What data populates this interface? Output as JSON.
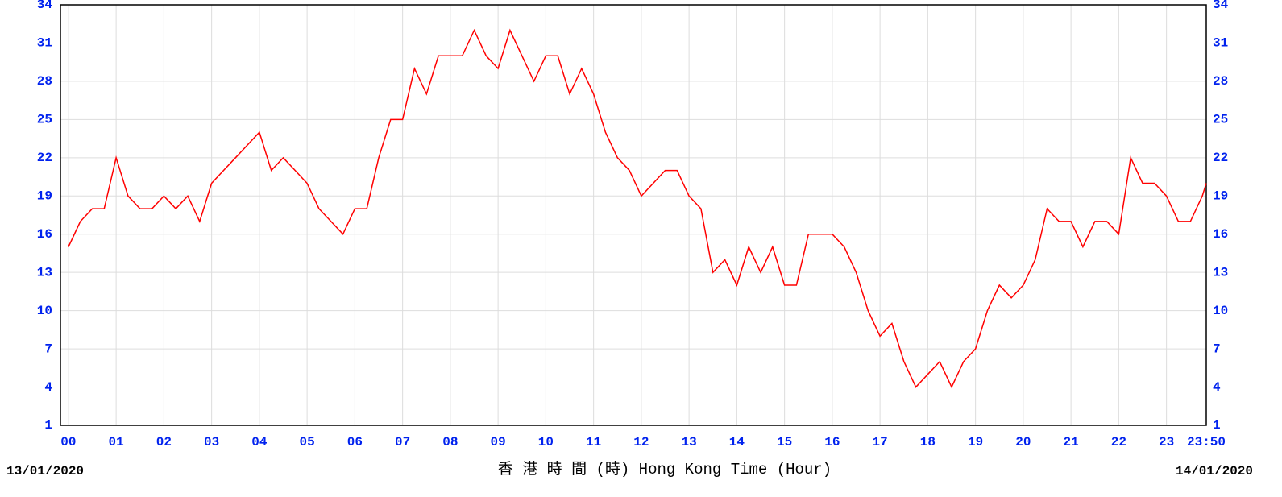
{
  "chart_data": {
    "type": "line",
    "x": [
      0,
      0.25,
      0.5,
      0.75,
      1,
      1.25,
      1.5,
      1.75,
      2,
      2.25,
      2.5,
      2.75,
      3,
      3.25,
      3.5,
      3.75,
      4,
      4.25,
      4.5,
      4.75,
      5,
      5.25,
      5.5,
      5.75,
      6,
      6.25,
      6.5,
      6.75,
      7,
      7.25,
      7.5,
      7.75,
      8,
      8.25,
      8.5,
      8.75,
      9,
      9.25,
      9.5,
      9.75,
      10,
      10.25,
      10.5,
      10.75,
      11,
      11.25,
      11.5,
      11.75,
      12,
      12.25,
      12.5,
      12.75,
      13,
      13.25,
      13.5,
      13.75,
      14,
      14.25,
      14.5,
      14.75,
      15,
      15.25,
      15.5,
      15.75,
      16,
      16.25,
      16.5,
      16.75,
      17,
      17.25,
      17.5,
      17.75,
      18,
      18.25,
      18.5,
      18.75,
      19,
      19.25,
      19.5,
      19.75,
      20,
      20.25,
      20.5,
      20.75,
      21,
      21.25,
      21.5,
      21.75,
      22,
      22.25,
      22.5,
      22.75,
      23,
      23.25,
      23.5,
      23.75,
      23.8333
    ],
    "series": [
      {
        "name": "Hong Kong Time",
        "color": "#ff0000",
        "values": [
          15,
          17,
          18,
          18,
          22,
          19,
          18,
          18,
          19,
          18,
          19,
          17,
          20,
          21,
          22,
          23,
          24,
          21,
          22,
          21,
          20,
          18,
          17,
          16,
          18,
          18,
          22,
          25,
          25,
          29,
          27,
          30,
          30,
          30,
          32,
          30,
          29,
          32,
          30,
          28,
          30,
          30,
          27,
          29,
          27,
          24,
          22,
          21,
          19,
          20,
          21,
          21,
          19,
          18,
          13,
          14,
          12,
          15,
          13,
          15,
          12,
          12,
          16,
          16,
          16,
          15,
          13,
          10,
          8,
          9,
          6,
          4,
          5,
          6,
          4,
          6,
          7,
          10,
          12,
          11,
          12,
          14,
          18,
          17,
          17,
          15,
          17,
          17,
          16,
          22,
          20,
          20,
          19,
          17,
          17,
          19,
          20
        ]
      }
    ],
    "xlim": [
      -0.1667,
      23.8333
    ],
    "xticks": [
      {
        "value": 0,
        "label": "00"
      },
      {
        "value": 1,
        "label": "01"
      },
      {
        "value": 2,
        "label": "02"
      },
      {
        "value": 3,
        "label": "03"
      },
      {
        "value": 4,
        "label": "04"
      },
      {
        "value": 5,
        "label": "05"
      },
      {
        "value": 6,
        "label": "06"
      },
      {
        "value": 7,
        "label": "07"
      },
      {
        "value": 8,
        "label": "08"
      },
      {
        "value": 9,
        "label": "09"
      },
      10,
      11,
      12,
      13,
      14,
      15,
      16,
      17,
      18,
      19,
      20,
      21,
      22,
      23,
      {
        "value": 23.8333,
        "label": "23:50"
      }
    ],
    "ylim": [
      1,
      34
    ],
    "yticks": [
      1,
      4,
      7,
      10,
      13,
      16,
      19,
      22,
      25,
      28,
      31,
      34
    ],
    "grid": true,
    "x_label": "香 港 時 間 (時) Hong Kong Time (Hour)",
    "start_date": "13/01/2020",
    "end_date": "14/01/2020"
  }
}
